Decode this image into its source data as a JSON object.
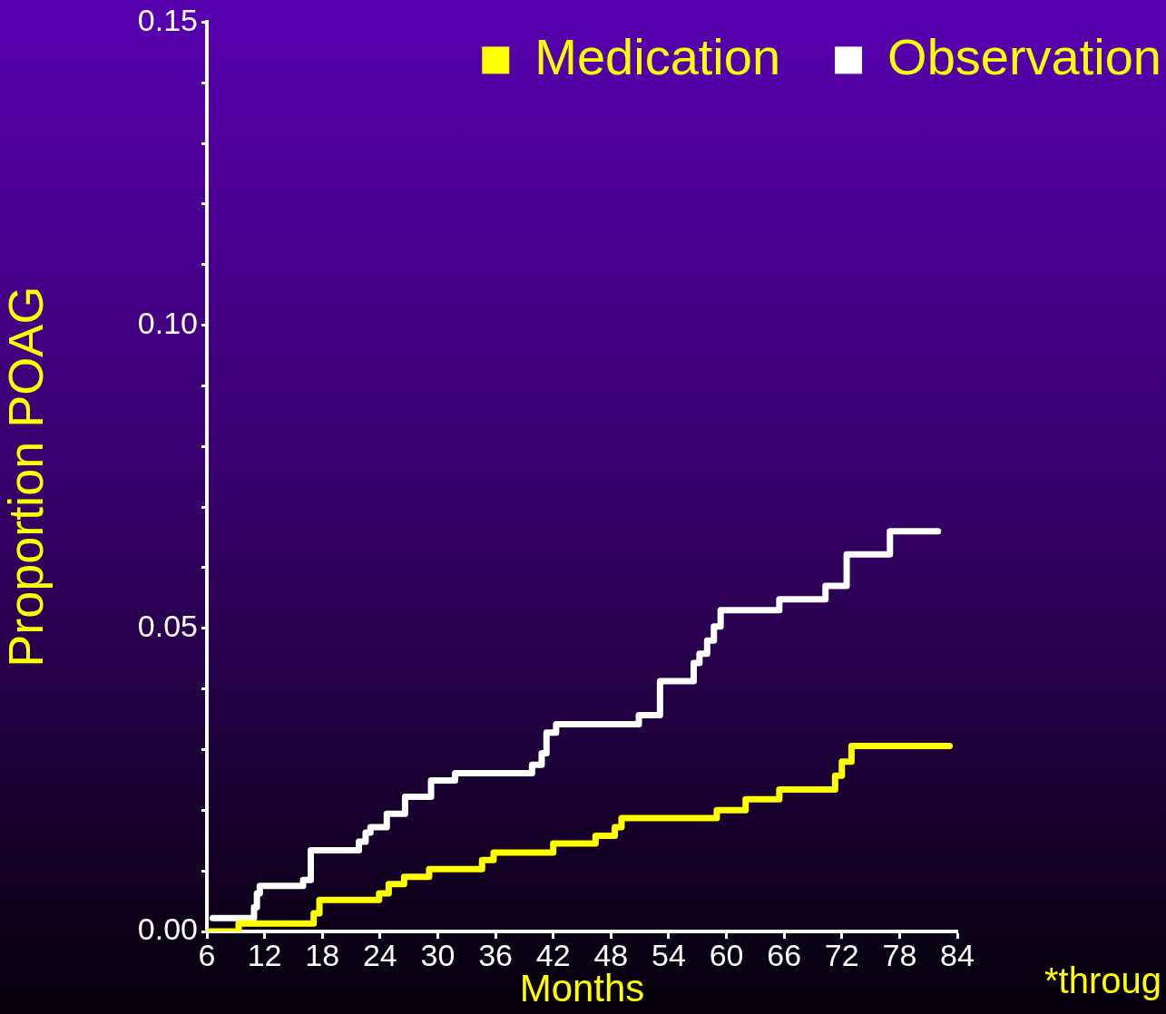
{
  "chart_data": {
    "type": "step",
    "xlabel": "Months",
    "ylabel": "Proportion POAG",
    "annotations": [
      "*throug"
    ],
    "xlim": [
      6,
      84
    ],
    "xticks": [
      6,
      12,
      18,
      24,
      30,
      36,
      42,
      48,
      54,
      60,
      66,
      72,
      78,
      84
    ],
    "ylim": [
      0,
      0.15
    ],
    "yticks": [
      {
        "value": 0,
        "label": "0.00"
      },
      {
        "value": 0.01,
        "label": null
      },
      {
        "value": 0.02,
        "label": null
      },
      {
        "value": 0.03,
        "label": null
      },
      {
        "value": 0.04,
        "label": null
      },
      {
        "value": 0.05,
        "label": "0.05"
      },
      {
        "value": 0.06,
        "label": null
      },
      {
        "value": 0.07,
        "label": null
      },
      {
        "value": 0.08,
        "label": null
      },
      {
        "value": 0.09,
        "label": null
      },
      {
        "value": 0.1,
        "label": "0.10"
      },
      {
        "value": 0.11,
        "label": null
      },
      {
        "value": 0.12,
        "label": null
      },
      {
        "value": 0.13,
        "label": null
      },
      {
        "value": 0.14,
        "label": null
      },
      {
        "value": 0.15,
        "label": "0.15"
      }
    ],
    "grid": false,
    "legend": "top right",
    "marker": "none",
    "line_style": "solid",
    "series": [
      {
        "name": "Medication",
        "color": "#ffff00",
        "x": [
          6,
          9.3,
          17.1,
          17.7,
          23.9,
          24.9,
          26.5,
          29.1,
          34.6,
          35.8,
          42,
          46.4,
          48.4,
          49.1,
          59,
          62,
          65.5,
          71.3,
          72,
          73,
          83.2
        ],
        "values": [
          0,
          0.0013,
          0.003,
          0.0052,
          0.0063,
          0.0078,
          0.009,
          0.0103,
          0.0118,
          0.013,
          0.0145,
          0.0158,
          0.0172,
          0.0187,
          0.02,
          0.0218,
          0.0234,
          0.0257,
          0.028,
          0.0306,
          0.0306
        ]
      },
      {
        "name": "Observation",
        "color": "#ffffff",
        "x": [
          6.6,
          10.9,
          11.2,
          11.5,
          16,
          16.8,
          21.8,
          22.5,
          23,
          24.7,
          26.6,
          29.3,
          31.8,
          39.8,
          40.8,
          41.3,
          42.3,
          50.9,
          53.1,
          56.6,
          57.2,
          58,
          58.7,
          59.4,
          65.5,
          70.3,
          72.5,
          77,
          82
        ],
        "values": [
          0.0022,
          0.004,
          0.0063,
          0.0075,
          0.0085,
          0.0134,
          0.0148,
          0.0163,
          0.0172,
          0.0194,
          0.0222,
          0.0249,
          0.0261,
          0.0275,
          0.0294,
          0.0328,
          0.0342,
          0.0357,
          0.0413,
          0.0443,
          0.0458,
          0.048,
          0.0503,
          0.053,
          0.0548,
          0.057,
          0.0622,
          0.066,
          0.066
        ]
      }
    ]
  }
}
